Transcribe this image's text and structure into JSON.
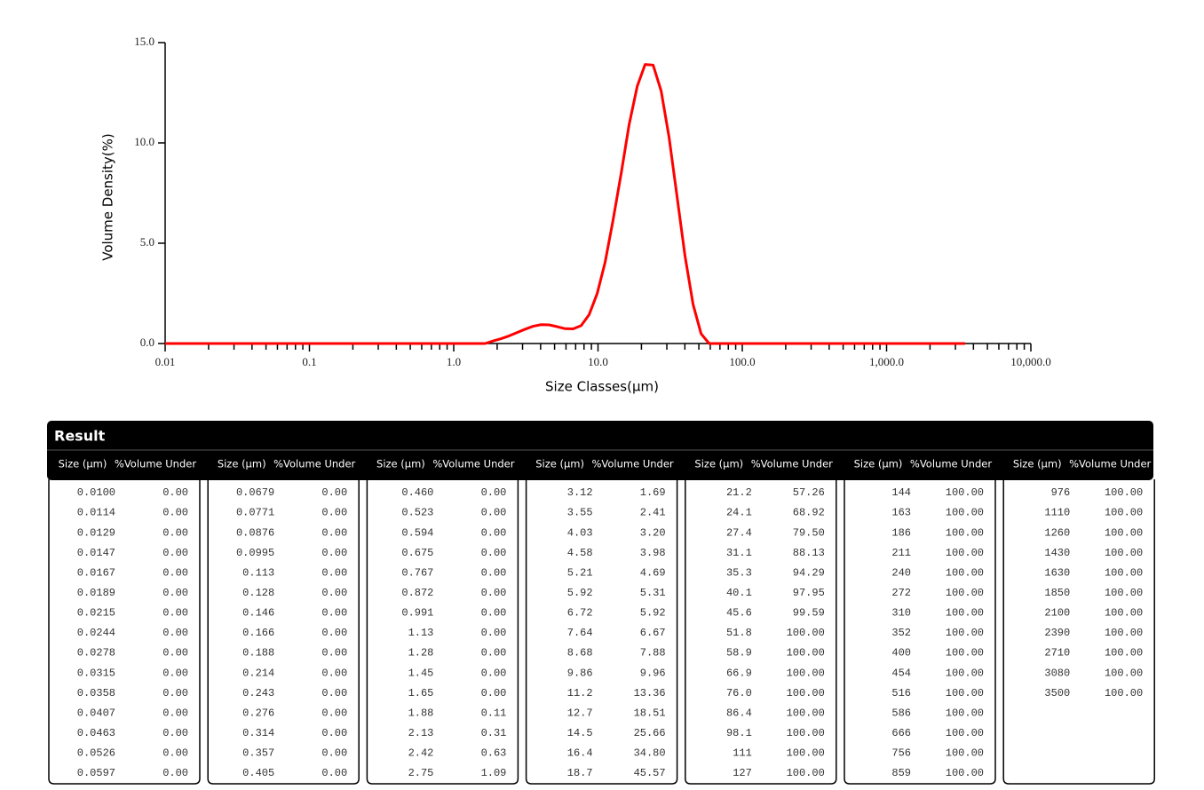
{
  "chart_data": {
    "type": "line",
    "xlabel": "Size Classes(μm)",
    "ylabel": "Volume Density(%)",
    "xscale": "log",
    "color": "#ff0000",
    "xlim": [
      0.01,
      10000
    ],
    "ylim": [
      0,
      15
    ],
    "xticks": [
      0.01,
      0.1,
      {
        "value": 1,
        "label": "1.0"
      },
      {
        "value": 10,
        "label": "10.0"
      },
      {
        "value": 100,
        "label": "100.0"
      },
      {
        "value": 1000,
        "label": "1,000.0"
      },
      {
        "value": 10000,
        "label": "10,000.0"
      }
    ],
    "xminorticks": [
      0.02,
      0.03,
      0.04,
      0.05,
      0.06,
      0.07,
      0.08,
      0.09,
      0.2,
      0.3,
      0.4,
      0.5,
      0.6,
      0.7,
      0.8,
      0.9,
      2,
      3,
      4,
      5,
      6,
      7,
      8,
      9,
      20,
      30,
      40,
      50,
      60,
      70,
      80,
      90,
      200,
      300,
      400,
      500,
      600,
      700,
      800,
      900,
      2000,
      3000,
      4000,
      5000,
      6000,
      7000,
      8000,
      9000
    ],
    "yticks": [
      {
        "value": 0,
        "label": "0.0"
      },
      {
        "value": 5,
        "label": "5.0"
      },
      {
        "value": 10,
        "label": "10.0"
      },
      {
        "value": 15,
        "label": "15.0"
      }
    ],
    "x": [
      0.01,
      0.0114,
      0.0129,
      0.0147,
      0.0167,
      0.0189,
      0.0215,
      0.0244,
      0.0278,
      0.0315,
      0.0358,
      0.0407,
      0.0463,
      0.0526,
      0.0597,
      0.0679,
      0.0771,
      0.0876,
      0.0995,
      0.113,
      0.128,
      0.146,
      0.166,
      0.188,
      0.214,
      0.243,
      0.276,
      0.314,
      0.357,
      0.405,
      0.46,
      0.523,
      0.594,
      0.675,
      0.767,
      0.872,
      0.991,
      1.13,
      1.28,
      1.45,
      1.65,
      1.88,
      2.13,
      2.42,
      2.75,
      3.12,
      3.55,
      4.03,
      4.58,
      5.21,
      5.92,
      6.72,
      7.64,
      8.68,
      9.86,
      11.2,
      12.7,
      14.5,
      16.4,
      18.7,
      21.2,
      24.1,
      27.4,
      31.1,
      35.3,
      40.1,
      45.6,
      51.8,
      58.9,
      66.9,
      76,
      86.4,
      98.1,
      111,
      127,
      144,
      163,
      186,
      211,
      240,
      272,
      310,
      352,
      400,
      454,
      516,
      586,
      666,
      756,
      859,
      976,
      1110,
      1260,
      1430,
      1630,
      1850,
      2100,
      2390,
      2710,
      3080,
      3500
    ],
    "values": [
      0,
      0,
      0,
      0,
      0,
      0,
      0,
      0,
      0,
      0,
      0,
      0,
      0,
      0,
      0,
      0,
      0,
      0,
      0,
      0,
      0,
      0,
      0,
      0,
      0,
      0,
      0,
      0,
      0,
      0,
      0,
      0,
      0,
      0,
      0,
      0,
      0,
      0,
      0,
      0,
      0,
      0.13,
      0.24,
      0.38,
      0.55,
      0.71,
      0.86,
      0.94,
      0.93,
      0.84,
      0.74,
      0.73,
      0.89,
      1.44,
      2.48,
      4.05,
      6.13,
      8.51,
      10.88,
      12.82,
      13.91,
      13.88,
      12.59,
      10.27,
      7.33,
      4.36,
      1.95,
      0.49,
      0,
      0,
      0,
      0,
      0,
      0,
      0,
      0,
      0,
      0,
      0,
      0,
      0,
      0,
      0,
      0,
      0,
      0,
      0,
      0,
      0,
      0,
      0,
      0,
      0,
      0,
      0,
      0,
      0,
      0,
      0,
      0,
      0
    ]
  },
  "table": {
    "title": "Result",
    "header": [
      "Size (μm)",
      "%Volume Under"
    ],
    "columns": [
      [
        [
          "0.0100",
          "0.00"
        ],
        [
          "0.0114",
          "0.00"
        ],
        [
          "0.0129",
          "0.00"
        ],
        [
          "0.0147",
          "0.00"
        ],
        [
          "0.0167",
          "0.00"
        ],
        [
          "0.0189",
          "0.00"
        ],
        [
          "0.0215",
          "0.00"
        ],
        [
          "0.0244",
          "0.00"
        ],
        [
          "0.0278",
          "0.00"
        ],
        [
          "0.0315",
          "0.00"
        ],
        [
          "0.0358",
          "0.00"
        ],
        [
          "0.0407",
          "0.00"
        ],
        [
          "0.0463",
          "0.00"
        ],
        [
          "0.0526",
          "0.00"
        ],
        [
          "0.0597",
          "0.00"
        ]
      ],
      [
        [
          "0.0679",
          "0.00"
        ],
        [
          "0.0771",
          "0.00"
        ],
        [
          "0.0876",
          "0.00"
        ],
        [
          "0.0995",
          "0.00"
        ],
        [
          "0.113",
          "0.00"
        ],
        [
          "0.128",
          "0.00"
        ],
        [
          "0.146",
          "0.00"
        ],
        [
          "0.166",
          "0.00"
        ],
        [
          "0.188",
          "0.00"
        ],
        [
          "0.214",
          "0.00"
        ],
        [
          "0.243",
          "0.00"
        ],
        [
          "0.276",
          "0.00"
        ],
        [
          "0.314",
          "0.00"
        ],
        [
          "0.357",
          "0.00"
        ],
        [
          "0.405",
          "0.00"
        ]
      ],
      [
        [
          "0.460",
          "0.00"
        ],
        [
          "0.523",
          "0.00"
        ],
        [
          "0.594",
          "0.00"
        ],
        [
          "0.675",
          "0.00"
        ],
        [
          "0.767",
          "0.00"
        ],
        [
          "0.872",
          "0.00"
        ],
        [
          "0.991",
          "0.00"
        ],
        [
          "1.13",
          "0.00"
        ],
        [
          "1.28",
          "0.00"
        ],
        [
          "1.45",
          "0.00"
        ],
        [
          "1.65",
          "0.00"
        ],
        [
          "1.88",
          "0.11"
        ],
        [
          "2.13",
          "0.31"
        ],
        [
          "2.42",
          "0.63"
        ],
        [
          "2.75",
          "1.09"
        ]
      ],
      [
        [
          "3.12",
          "1.69"
        ],
        [
          "3.55",
          "2.41"
        ],
        [
          "4.03",
          "3.20"
        ],
        [
          "4.58",
          "3.98"
        ],
        [
          "5.21",
          "4.69"
        ],
        [
          "5.92",
          "5.31"
        ],
        [
          "6.72",
          "5.92"
        ],
        [
          "7.64",
          "6.67"
        ],
        [
          "8.68",
          "7.88"
        ],
        [
          "9.86",
          "9.96"
        ],
        [
          "11.2",
          "13.36"
        ],
        [
          "12.7",
          "18.51"
        ],
        [
          "14.5",
          "25.66"
        ],
        [
          "16.4",
          "34.80"
        ],
        [
          "18.7",
          "45.57"
        ]
      ],
      [
        [
          "21.2",
          "57.26"
        ],
        [
          "24.1",
          "68.92"
        ],
        [
          "27.4",
          "79.50"
        ],
        [
          "31.1",
          "88.13"
        ],
        [
          "35.3",
          "94.29"
        ],
        [
          "40.1",
          "97.95"
        ],
        [
          "45.6",
          "99.59"
        ],
        [
          "51.8",
          "100.00"
        ],
        [
          "58.9",
          "100.00"
        ],
        [
          "66.9",
          "100.00"
        ],
        [
          "76.0",
          "100.00"
        ],
        [
          "86.4",
          "100.00"
        ],
        [
          "98.1",
          "100.00"
        ],
        [
          "111",
          "100.00"
        ],
        [
          "127",
          "100.00"
        ]
      ],
      [
        [
          "144",
          "100.00"
        ],
        [
          "163",
          "100.00"
        ],
        [
          "186",
          "100.00"
        ],
        [
          "211",
          "100.00"
        ],
        [
          "240",
          "100.00"
        ],
        [
          "272",
          "100.00"
        ],
        [
          "310",
          "100.00"
        ],
        [
          "352",
          "100.00"
        ],
        [
          "400",
          "100.00"
        ],
        [
          "454",
          "100.00"
        ],
        [
          "516",
          "100.00"
        ],
        [
          "586",
          "100.00"
        ],
        [
          "666",
          "100.00"
        ],
        [
          "756",
          "100.00"
        ],
        [
          "859",
          "100.00"
        ]
      ],
      [
        [
          "976",
          "100.00"
        ],
        [
          "1110",
          "100.00"
        ],
        [
          "1260",
          "100.00"
        ],
        [
          "1430",
          "100.00"
        ],
        [
          "1630",
          "100.00"
        ],
        [
          "1850",
          "100.00"
        ],
        [
          "2100",
          "100.00"
        ],
        [
          "2390",
          "100.00"
        ],
        [
          "2710",
          "100.00"
        ],
        [
          "3080",
          "100.00"
        ],
        [
          "3500",
          "100.00"
        ]
      ]
    ]
  }
}
